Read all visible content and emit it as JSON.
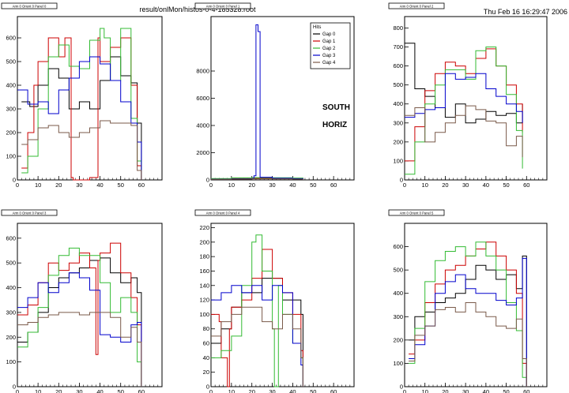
{
  "file_title": "result/onlMon/histos-0-4-185328.root",
  "timestamp": "Thu Feb 16 16:29:47 2006",
  "side_label": "SOUTH",
  "orient_label": "HORIZ",
  "legend": {
    "title": "Hits",
    "entries": [
      "Gap 0",
      "Gap 1",
      "Gap 2",
      "Gap 3",
      "Gap 4"
    ]
  },
  "colors": {
    "Gap 0": "#000000",
    "Gap 1": "#cc0000",
    "Gap 2": "#33bb33",
    "Gap 3": "#0000cc",
    "Gap 4": "#7a5a4a"
  },
  "chart_data": [
    {
      "type": "line",
      "title": "Arm 0 Orient 0 Panel 0",
      "xlim": [
        0,
        70
      ],
      "xticks": [
        0,
        10,
        20,
        30,
        40,
        50,
        60
      ],
      "ylim": [
        0,
        690
      ],
      "yticks": [
        0,
        100,
        200,
        300,
        400,
        500,
        600
      ],
      "series": [
        {
          "name": "Gap 0",
          "x": [
            2,
            6,
            10,
            15,
            20,
            25,
            30,
            35,
            40,
            45,
            50,
            55,
            58,
            60
          ],
          "y": [
            330,
            310,
            400,
            470,
            430,
            300,
            330,
            300,
            420,
            520,
            440,
            410,
            240,
            0
          ]
        },
        {
          "name": "Gap 1",
          "x": [
            2,
            5,
            8,
            10,
            15,
            20,
            23,
            26,
            27,
            30,
            35,
            38,
            39,
            40,
            45,
            50,
            55,
            58,
            60
          ],
          "y": [
            50,
            200,
            400,
            500,
            600,
            520,
            600,
            10,
            0,
            0,
            10,
            10,
            600,
            500,
            560,
            600,
            400,
            60,
            0
          ]
        },
        {
          "name": "Gap 2",
          "x": [
            2,
            5,
            10,
            15,
            20,
            25,
            30,
            35,
            40,
            42,
            45,
            50,
            55,
            58,
            60
          ],
          "y": [
            30,
            100,
            300,
            520,
            570,
            480,
            470,
            590,
            640,
            600,
            420,
            640,
            260,
            80,
            0
          ]
        },
        {
          "name": "Gap 3",
          "x": [
            0,
            5,
            10,
            15,
            20,
            25,
            30,
            35,
            40,
            45,
            50,
            55,
            58,
            60
          ],
          "y": [
            380,
            320,
            330,
            280,
            380,
            430,
            500,
            520,
            490,
            420,
            330,
            240,
            160,
            0
          ]
        },
        {
          "name": "Gap 4",
          "x": [
            2,
            5,
            10,
            15,
            20,
            25,
            30,
            35,
            40,
            45,
            50,
            55,
            58,
            60
          ],
          "y": [
            150,
            170,
            220,
            230,
            200,
            180,
            200,
            220,
            250,
            240,
            240,
            230,
            40,
            0
          ]
        }
      ]
    },
    {
      "type": "line",
      "title": "Arm 0 Orient 0 Panel 1",
      "xlim": [
        0,
        70
      ],
      "xticks": [
        0,
        10,
        20,
        30,
        40,
        50,
        60
      ],
      "ylim": [
        0,
        12000
      ],
      "yticks": [
        0,
        2000,
        4000,
        6000,
        8000
      ],
      "series": [
        {
          "name": "Gap 0",
          "x": [
            0,
            10,
            20,
            30,
            40,
            45
          ],
          "y": [
            80,
            100,
            120,
            110,
            90,
            0
          ]
        },
        {
          "name": "Gap 1",
          "x": [
            0,
            10,
            20,
            30,
            40,
            45
          ],
          "y": [
            60,
            90,
            110,
            100,
            80,
            0
          ]
        },
        {
          "name": "Gap 2",
          "x": [
            0,
            10,
            20,
            30,
            40,
            45
          ],
          "y": [
            100,
            150,
            170,
            160,
            140,
            0
          ]
        },
        {
          "name": "Gap 3",
          "x": [
            0,
            10,
            20,
            21,
            22,
            23,
            24,
            30,
            40,
            45
          ],
          "y": [
            50,
            80,
            100,
            300,
            11400,
            10900,
            200,
            120,
            90,
            0
          ]
        },
        {
          "name": "Gap 4",
          "x": [
            0,
            10,
            20,
            30,
            40,
            45
          ],
          "y": [
            40,
            60,
            80,
            70,
            60,
            0
          ]
        }
      ]
    },
    {
      "type": "line",
      "title": "Arm 0 Orient 0 Panel 2",
      "xlim": [
        0,
        70
      ],
      "xticks": [
        0,
        10,
        20,
        30,
        40,
        50,
        60
      ],
      "ylim": [
        0,
        860
      ],
      "yticks": [
        0,
        100,
        200,
        300,
        400,
        500,
        600,
        700,
        800
      ],
      "series": [
        {
          "name": "Gap 0",
          "x": [
            0,
            5,
            10,
            15,
            20,
            25,
            30,
            35,
            40,
            45,
            50,
            55,
            58
          ],
          "y": [
            720,
            480,
            440,
            380,
            330,
            400,
            300,
            320,
            360,
            340,
            350,
            300,
            400
          ]
        },
        {
          "name": "Gap 1",
          "x": [
            0,
            5,
            10,
            15,
            20,
            25,
            30,
            35,
            40,
            45,
            50,
            55,
            58
          ],
          "y": [
            100,
            280,
            470,
            560,
            620,
            600,
            560,
            640,
            690,
            600,
            500,
            400,
            250
          ]
        },
        {
          "name": "Gap 2",
          "x": [
            0,
            5,
            10,
            15,
            20,
            25,
            30,
            35,
            40,
            45,
            50,
            55,
            58
          ],
          "y": [
            30,
            200,
            400,
            500,
            580,
            580,
            530,
            680,
            700,
            600,
            450,
            260,
            60
          ]
        },
        {
          "name": "Gap 3",
          "x": [
            0,
            5,
            10,
            15,
            20,
            25,
            30,
            35,
            40,
            45,
            50,
            55,
            58
          ],
          "y": [
            330,
            350,
            370,
            380,
            560,
            530,
            540,
            560,
            480,
            440,
            400,
            360,
            300
          ]
        },
        {
          "name": "Gap 4",
          "x": [
            0,
            5,
            10,
            15,
            20,
            25,
            30,
            35,
            40,
            45,
            50,
            55,
            58
          ],
          "y": [
            340,
            380,
            200,
            250,
            300,
            340,
            390,
            370,
            310,
            300,
            180,
            230,
            120
          ]
        }
      ]
    },
    {
      "type": "line",
      "title": "Arm 0 Orient 0 Panel 3",
      "xlim": [
        0,
        70
      ],
      "xticks": [
        0,
        10,
        20,
        30,
        40,
        50,
        60
      ],
      "ylim": [
        0,
        660
      ],
      "yticks": [
        0,
        100,
        200,
        300,
        400,
        500,
        600
      ],
      "series": [
        {
          "name": "Gap 0",
          "x": [
            0,
            5,
            10,
            15,
            20,
            25,
            30,
            35,
            40,
            45,
            50,
            55,
            58,
            60
          ],
          "y": [
            180,
            220,
            300,
            400,
            440,
            460,
            480,
            510,
            520,
            460,
            420,
            440,
            380,
            0
          ]
        },
        {
          "name": "Gap 1",
          "x": [
            0,
            5,
            10,
            15,
            20,
            25,
            30,
            35,
            38,
            39,
            40,
            45,
            50,
            55,
            58,
            60
          ],
          "y": [
            290,
            330,
            420,
            500,
            470,
            500,
            540,
            480,
            130,
            510,
            540,
            580,
            460,
            360,
            250,
            0
          ]
        },
        {
          "name": "Gap 2",
          "x": [
            0,
            5,
            10,
            15,
            20,
            25,
            30,
            35,
            40,
            45,
            50,
            55,
            58,
            60
          ],
          "y": [
            160,
            220,
            320,
            450,
            530,
            560,
            530,
            530,
            420,
            300,
            360,
            300,
            100,
            0
          ]
        },
        {
          "name": "Gap 3",
          "x": [
            0,
            5,
            10,
            15,
            20,
            25,
            30,
            35,
            40,
            45,
            50,
            55,
            58,
            60
          ],
          "y": [
            320,
            360,
            420,
            380,
            420,
            460,
            440,
            390,
            210,
            200,
            180,
            250,
            260,
            0
          ]
        },
        {
          "name": "Gap 4",
          "x": [
            0,
            5,
            10,
            15,
            20,
            25,
            30,
            35,
            40,
            45,
            50,
            55,
            58,
            60
          ],
          "y": [
            250,
            260,
            280,
            290,
            300,
            300,
            290,
            300,
            300,
            280,
            200,
            240,
            180,
            0
          ]
        }
      ]
    },
    {
      "type": "line",
      "title": "Arm 0 Orient 0 Panel 4",
      "xlim": [
        0,
        70
      ],
      "xticks": [
        0,
        10,
        20,
        30,
        40,
        50,
        60
      ],
      "ylim": [
        0,
        226
      ],
      "yticks": [
        0,
        20,
        40,
        60,
        80,
        100,
        120,
        140,
        160,
        180,
        200,
        220
      ],
      "series": [
        {
          "name": "Gap 0",
          "x": [
            0,
            5,
            10,
            15,
            20,
            25,
            30,
            35,
            40,
            44,
            45
          ],
          "y": [
            60,
            80,
            110,
            130,
            130,
            150,
            150,
            120,
            120,
            100,
            0
          ]
        },
        {
          "name": "Gap 1",
          "x": [
            0,
            4,
            5,
            8,
            9,
            10,
            15,
            20,
            25,
            30,
            35,
            40,
            44,
            45
          ],
          "y": [
            100,
            90,
            40,
            0,
            80,
            110,
            120,
            150,
            190,
            150,
            130,
            100,
            50,
            0
          ]
        },
        {
          "name": "Gap 2",
          "x": [
            0,
            5,
            10,
            15,
            20,
            22,
            25,
            30,
            31,
            33,
            35,
            40,
            44,
            45
          ],
          "y": [
            40,
            50,
            70,
            140,
            200,
            210,
            160,
            80,
            0,
            140,
            100,
            60,
            40,
            0
          ]
        },
        {
          "name": "Gap 3",
          "x": [
            0,
            5,
            10,
            15,
            20,
            25,
            30,
            35,
            40,
            44,
            45
          ],
          "y": [
            120,
            130,
            140,
            130,
            140,
            120,
            140,
            130,
            60,
            30,
            0
          ]
        },
        {
          "name": "Gap 4",
          "x": [
            0,
            5,
            10,
            15,
            20,
            25,
            30,
            35,
            40,
            44,
            45
          ],
          "y": [
            70,
            90,
            100,
            110,
            110,
            90,
            80,
            100,
            80,
            40,
            0
          ]
        }
      ]
    },
    {
      "type": "line",
      "title": "Arm 0 Orient 0 Panel 5",
      "xlim": [
        0,
        70
      ],
      "xticks": [
        0,
        10,
        20,
        30,
        40,
        50,
        60
      ],
      "ylim": [
        0,
        700
      ],
      "yticks": [
        0,
        100,
        200,
        300,
        400,
        500,
        600
      ],
      "series": [
        {
          "name": "Gap 0",
          "x": [
            2,
            5,
            10,
            15,
            20,
            25,
            30,
            35,
            40,
            45,
            50,
            55,
            58,
            60
          ],
          "y": [
            200,
            300,
            320,
            360,
            380,
            400,
            460,
            520,
            500,
            460,
            480,
            420,
            560,
            0
          ]
        },
        {
          "name": "Gap 1",
          "x": [
            2,
            5,
            10,
            15,
            20,
            25,
            30,
            35,
            40,
            45,
            50,
            55,
            58,
            60
          ],
          "y": [
            140,
            200,
            360,
            440,
            500,
            520,
            560,
            590,
            620,
            560,
            500,
            400,
            100,
            0
          ]
        },
        {
          "name": "Gap 2",
          "x": [
            2,
            5,
            10,
            15,
            20,
            25,
            30,
            35,
            40,
            45,
            50,
            55,
            58,
            60
          ],
          "y": [
            100,
            250,
            450,
            540,
            580,
            600,
            560,
            620,
            560,
            500,
            360,
            240,
            40,
            0
          ]
        },
        {
          "name": "Gap 3",
          "x": [
            2,
            5,
            10,
            15,
            20,
            25,
            30,
            35,
            40,
            45,
            50,
            55,
            58,
            60
          ],
          "y": [
            120,
            180,
            260,
            400,
            450,
            480,
            420,
            400,
            400,
            370,
            350,
            380,
            550,
            0
          ]
        },
        {
          "name": "Gap 4",
          "x": [
            2,
            5,
            10,
            15,
            20,
            25,
            30,
            35,
            40,
            45,
            50,
            55,
            58,
            60
          ],
          "y": [
            110,
            220,
            260,
            330,
            340,
            320,
            360,
            320,
            300,
            260,
            250,
            290,
            120,
            0
          ]
        }
      ]
    }
  ]
}
